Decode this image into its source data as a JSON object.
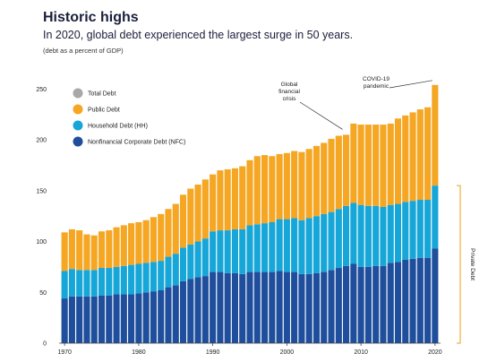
{
  "chart_data": {
    "type": "bar",
    "title": "Historic highs",
    "subtitle": "In 2020, global debt experienced the largest surge in 50 years.",
    "note": "(debt as a percent of GDP)",
    "ylim": [
      0,
      260
    ],
    "yticks": [
      0,
      50,
      100,
      150,
      200,
      250
    ],
    "xticks": [
      "1970",
      "1980",
      "1990",
      "2000",
      "2010",
      "2020"
    ],
    "categories": [
      "1970",
      "1971",
      "1972",
      "1973",
      "1974",
      "1975",
      "1976",
      "1977",
      "1978",
      "1979",
      "1980",
      "1981",
      "1982",
      "1983",
      "1984",
      "1985",
      "1986",
      "1987",
      "1988",
      "1989",
      "1990",
      "1991",
      "1992",
      "1993",
      "1994",
      "1995",
      "1996",
      "1997",
      "1998",
      "1999",
      "2000",
      "2001",
      "2002",
      "2003",
      "2004",
      "2005",
      "2006",
      "2007",
      "2008",
      "2009",
      "2010",
      "2011",
      "2012",
      "2013",
      "2014",
      "2015",
      "2016",
      "2017",
      "2018",
      "2019",
      "2020"
    ],
    "series": [
      {
        "name": "Nonfinancial Corporate Debt (NFC)",
        "color": "#1f4e9c",
        "values": [
          44,
          46,
          46,
          46,
          46,
          47,
          47,
          48,
          48,
          48,
          49,
          50,
          51,
          52,
          55,
          57,
          61,
          63,
          65,
          66,
          70,
          70,
          69,
          69,
          68,
          70,
          70,
          70,
          70,
          71,
          70,
          70,
          68,
          68,
          69,
          70,
          72,
          74,
          76,
          78,
          75,
          75,
          76,
          76,
          79,
          80,
          82,
          83,
          84,
          84,
          93
        ]
      },
      {
        "name": "Household Debt (HH)",
        "color": "#17a6d8",
        "values": [
          27,
          27,
          26,
          26,
          26,
          27,
          27,
          27,
          28,
          29,
          29,
          29,
          29,
          29,
          30,
          31,
          33,
          34,
          35,
          37,
          40,
          41,
          42,
          43,
          44,
          46,
          47,
          48,
          49,
          51,
          52,
          53,
          53,
          55,
          56,
          57,
          57,
          58,
          59,
          60,
          61,
          60,
          59,
          58,
          57,
          57,
          57,
          57,
          57,
          57,
          62
        ]
      },
      {
        "name": "Public Debt",
        "color": "#f5a623",
        "values": [
          38,
          39,
          39,
          35,
          34,
          36,
          37,
          39,
          40,
          41,
          41,
          42,
          44,
          46,
          47,
          49,
          52,
          55,
          56,
          58,
          56,
          59,
          60,
          60,
          62,
          64,
          67,
          67,
          65,
          64,
          65,
          66,
          67,
          68,
          69,
          70,
          72,
          72,
          70,
          78,
          79,
          80,
          80,
          81,
          80,
          84,
          85,
          87,
          89,
          91,
          99
        ]
      }
    ],
    "total_series_name": "Total Debt",
    "total_color": "#a8a8a8",
    "annotations": [
      {
        "label": "Global financial crisis",
        "year": "2008"
      },
      {
        "label": "COVID-19 pandemic",
        "year": "2020"
      }
    ],
    "side_label": "Private Debt"
  }
}
